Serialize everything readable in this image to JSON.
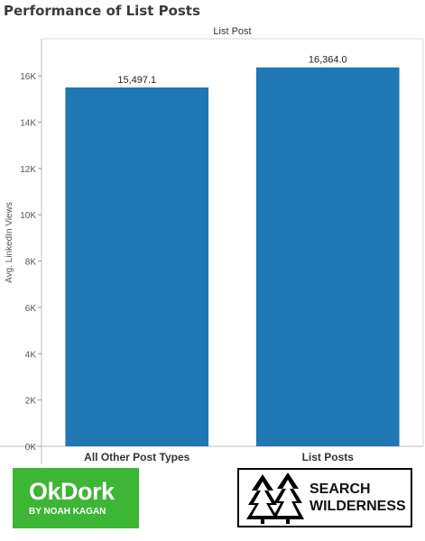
{
  "title": "Performance of List Posts",
  "chart_data": {
    "type": "bar",
    "column_header": "List Post",
    "categories": [
      "All Other Post Types",
      "List Posts"
    ],
    "values": [
      15497.1,
      16364.0
    ],
    "value_labels": [
      "15,497.1",
      "16,364.0"
    ],
    "ylabel": "Avg. LinkedIn Views",
    "ylim": [
      0,
      17600
    ],
    "yticks": [
      0,
      2000,
      4000,
      6000,
      8000,
      10000,
      12000,
      14000,
      16000
    ],
    "ytick_labels": [
      "0K",
      "2K",
      "4K",
      "6K",
      "8K",
      "10K",
      "12K",
      "14K",
      "16K"
    ],
    "bar_color": "#1f77b4",
    "grid": false
  },
  "logos": {
    "okdork": {
      "main": "OkDork",
      "sub": "BY NOAH KAGAN",
      "color": "#3db535"
    },
    "search_wilderness": {
      "line1": "SEARCH",
      "line2": "WILDERNESS",
      "icon": "pine-trees-icon"
    }
  }
}
